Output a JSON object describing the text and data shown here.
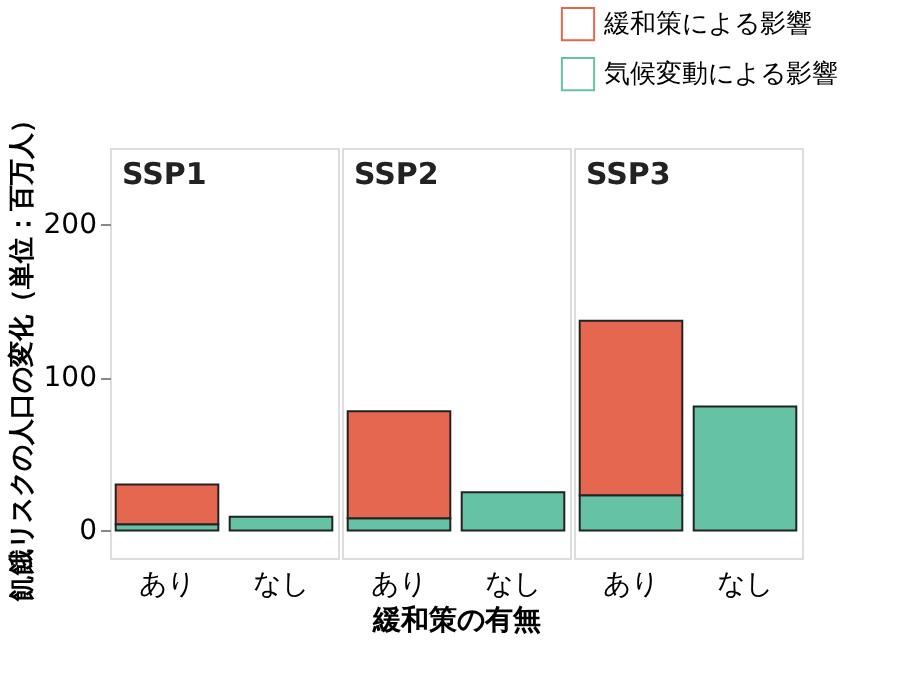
{
  "chart_data": [
    {
      "type": "bar",
      "title": "SSP1",
      "categories": [
        "あり",
        "なし"
      ],
      "stacked": true,
      "ylim": [
        -18,
        250
      ],
      "yticks": [
        0,
        100,
        200
      ],
      "ylabel": "飢餓リスクの人口の変化（単位：百万人）",
      "tick_labels": "xy",
      "grid": false,
      "legend": "top right",
      "series": [
        {
          "name": "気候変動による影響",
          "color": "#66c2a5",
          "values": [
            4,
            9
          ]
        },
        {
          "name": "緩和策による影響",
          "color": "#e5674f",
          "values": [
            26,
            null
          ]
        }
      ]
    },
    {
      "type": "bar",
      "title": "SSP2",
      "categories": [
        "あり",
        "なし"
      ],
      "stacked": true,
      "ylim": [
        -18,
        250
      ],
      "xlabel": "緩和策の有無",
      "tick_labels": "x",
      "grid": false,
      "series": [
        {
          "color": "#66c2a5",
          "values": [
            8,
            25
          ]
        },
        {
          "color": "#e5674f",
          "values": [
            70,
            null
          ]
        }
      ]
    },
    {
      "type": "bar",
      "title": "SSP3",
      "categories": [
        "あり",
        "なし"
      ],
      "stacked": true,
      "ylim": [
        -18,
        250
      ],
      "tick_labels": "x",
      "grid": false,
      "series": [
        {
          "color": "#66c2a5",
          "values": [
            23,
            81
          ]
        },
        {
          "color": "#e5674f",
          "values": [
            114,
            null
          ]
        }
      ]
    }
  ]
}
